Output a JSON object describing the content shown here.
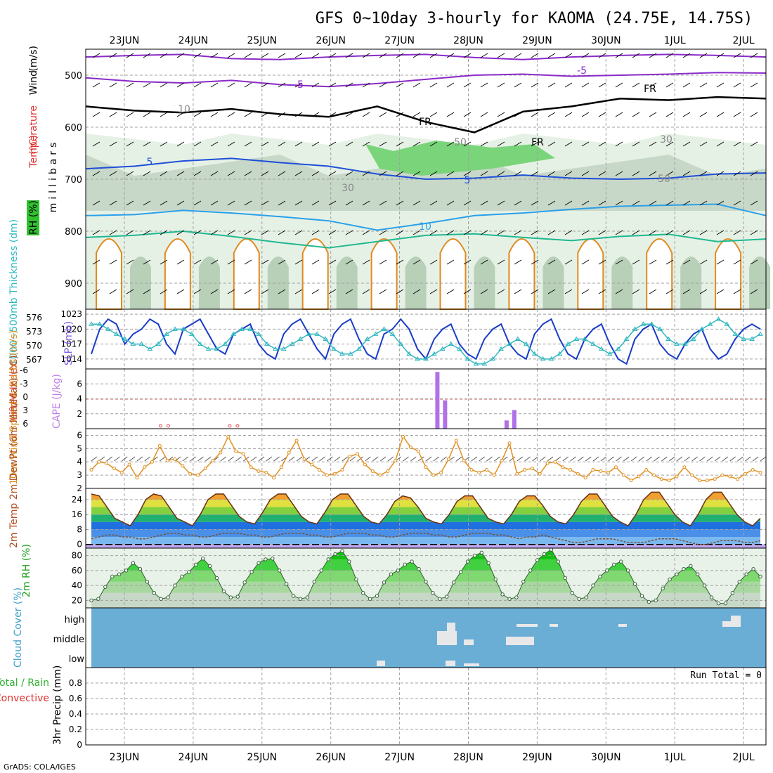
{
  "title": "GFS 0~10day 3-hourly for KAOMA (24.75E, 14.75S)",
  "footer": "GrADS: COLA/IGES",
  "dates": [
    "23JUN",
    "24JUN",
    "25JUN",
    "26JUN",
    "27JUN",
    "28JUN",
    "29JUN",
    "30JUN",
    "1JUL",
    "2JUL"
  ],
  "colors": {
    "frame": "#000000",
    "grid": "#a0a0a0",
    "slp": "#1a3cc8",
    "thickness": "#30b8c0",
    "cape": "#b070e8",
    "lifted": "#e05050",
    "wind10": "#e09020",
    "rh_green": "#20c020",
    "cloud_bg": "#6aaed6",
    "cloud_white": "#e8e8e8"
  },
  "chart_data": [
    {
      "type": "contour",
      "panel": "upper-air",
      "ylabels": [
        "(m/s)",
        "Wind",
        "Temperature",
        "(°C)",
        "RH (%)",
        "millibars"
      ],
      "yticks": [
        500,
        600,
        700,
        800,
        900
      ],
      "ylim": [
        950,
        450
      ],
      "contour_labels": [
        "-5",
        "-5",
        "FR",
        "FR",
        "FR",
        "10",
        "30",
        "30",
        "50",
        "50",
        "5",
        "5",
        "10"
      ],
      "temperature_isotherms": [
        {
          "label": "-5",
          "color": "#8a2bc8",
          "p": [
            505,
            512,
            515,
            510,
            518,
            522,
            516,
            508,
            500,
            498,
            502,
            500,
            498,
            495,
            496
          ]
        },
        {
          "label": "-5b",
          "color": "#8a2bc8",
          "p": [
            465,
            462,
            460,
            468,
            470,
            465,
            462,
            460,
            466,
            470,
            465,
            462,
            460,
            462,
            465
          ]
        },
        {
          "label": "FR",
          "color": "#000000",
          "p": [
            560,
            568,
            572,
            565,
            575,
            580,
            560,
            590,
            610,
            570,
            560,
            545,
            548,
            542,
            545
          ]
        },
        {
          "label": "5",
          "color": "#1e4fd8",
          "p": [
            680,
            675,
            665,
            660,
            668,
            675,
            690,
            700,
            698,
            692,
            698,
            700,
            698,
            690,
            688
          ]
        },
        {
          "label": "10",
          "color": "#2aa0e8",
          "p": [
            770,
            768,
            760,
            765,
            772,
            780,
            798,
            785,
            770,
            765,
            758,
            752,
            750,
            748,
            770
          ]
        },
        {
          "label": "15",
          "color": "#20b890",
          "p": [
            812,
            808,
            800,
            810,
            822,
            832,
            820,
            808,
            805,
            812,
            818,
            810,
            806,
            820,
            815
          ]
        }
      ]
    },
    {
      "type": "line",
      "panel": "slp-thickness",
      "ylabel_left": "1000~500mb Thickness (dm)",
      "ylabel_right": "SLP (mb)",
      "yticks_left": [
        576,
        573,
        570,
        567
      ],
      "yticks_right": [
        1023,
        1020,
        1017,
        1014
      ],
      "series": [
        {
          "name": "SLP (mb)",
          "axis": "right",
          "values": [
            1015,
            1020,
            1022,
            1021,
            1017,
            1019,
            1020,
            1022,
            1021,
            1017,
            1015,
            1020,
            1021,
            1022,
            1019,
            1016,
            1015,
            1019,
            1020,
            1021,
            1017,
            1015,
            1014,
            1019,
            1021,
            1022,
            1019,
            1016,
            1014,
            1019,
            1021,
            1022,
            1018,
            1015,
            1014,
            1019,
            1020,
            1022,
            1020,
            1016,
            1014,
            1018,
            1020,
            1021,
            1017,
            1015,
            1014,
            1018,
            1020,
            1021,
            1017,
            1015,
            1014,
            1019,
            1021,
            1022,
            1018,
            1015,
            1014,
            1018,
            1020,
            1021,
            1017,
            1014,
            1013,
            1018,
            1020,
            1021,
            1017,
            1015,
            1014,
            1017,
            1019,
            1020,
            1016,
            1014,
            1015,
            1018,
            1020,
            1021,
            1020
          ]
        },
        {
          "name": "1000~500mb Thickness (dm)",
          "axis": "left",
          "values": [
            575,
            575,
            574,
            573,
            572,
            571,
            571,
            570,
            571,
            573,
            574,
            574,
            573,
            571,
            570,
            570,
            571,
            573,
            574,
            574,
            573,
            571,
            570,
            570,
            571,
            572,
            573,
            573,
            572,
            570,
            569,
            569,
            570,
            572,
            573,
            574,
            573,
            571,
            569,
            568,
            568,
            569,
            570,
            571,
            570,
            568,
            567,
            567,
            568,
            570,
            571,
            572,
            571,
            569,
            568,
            568,
            569,
            571,
            572,
            572,
            571,
            570,
            569,
            570,
            572,
            574,
            575,
            575,
            574,
            572,
            571,
            571,
            572,
            574,
            575,
            576,
            575,
            573,
            572,
            572,
            573
          ]
        }
      ]
    },
    {
      "type": "bar",
      "panel": "cape-li",
      "ylabel_left": "Lifted Index",
      "ylabel_right": "CAPE (J/kg)",
      "yticks_left": [
        "-6",
        "-3",
        "0",
        "3",
        "6"
      ],
      "yticks_right": [
        6,
        4,
        2
      ],
      "ylim_cape": [
        0,
        8
      ],
      "cape_bars": [
        {
          "index": 45,
          "value": 7.6
        },
        {
          "index": 46,
          "value": 3.8
        },
        {
          "index": 54,
          "value": 1.1
        },
        {
          "index": 55,
          "value": 2.5
        }
      ],
      "lifted_index_markers": [
        9,
        10,
        18,
        19
      ]
    },
    {
      "type": "line",
      "panel": "wind10",
      "ylabel": "10m Wind Speed & Barbs (m/s)",
      "yticks": [
        6,
        5,
        4,
        3,
        2
      ],
      "ylim": [
        2,
        6.5
      ],
      "series": [
        {
          "name": "10m Wind Speed",
          "values": [
            3.4,
            4.0,
            3.9,
            3.5,
            3.2,
            3.8,
            2.8,
            3.6,
            4.0,
            5.2,
            4.1,
            4.2,
            3.7,
            3.1,
            3.0,
            3.5,
            4.1,
            4.7,
            5.9,
            4.8,
            4.6,
            3.6,
            3.3,
            3.2,
            2.8,
            3.6,
            4.7,
            5.6,
            4.2,
            3.8,
            3.4,
            3.0,
            3.1,
            3.4,
            4.4,
            4.6,
            3.8,
            3.3,
            3.0,
            3.3,
            4.1,
            5.9,
            5.1,
            4.8,
            3.6,
            3.0,
            3.2,
            4.2,
            5.6,
            4.1,
            3.4,
            3.2,
            3.4,
            3.0,
            4.1,
            5.4,
            3.1,
            3.4,
            3.5,
            3.1,
            3.9,
            4.0,
            3.6,
            3.4,
            3.1,
            2.8,
            3.4,
            3.3,
            3.2,
            3.6,
            3.0,
            2.6,
            2.9,
            3.4,
            3.0,
            2.7,
            2.6,
            2.9,
            3.6,
            3.0,
            2.6,
            2.6,
            2.7,
            3.0,
            2.9,
            2.7,
            3.1,
            3.4,
            3.2
          ]
        }
      ]
    },
    {
      "type": "area",
      "panel": "temp",
      "ylabel": "2m Temp 2m DewPt (6hr Min/Max) (°C)",
      "yticks": [
        24,
        16,
        8,
        0
      ],
      "ylim": [
        -2,
        30
      ],
      "series": [
        {
          "name": "2m Temp",
          "values": [
            27,
            26,
            20,
            14,
            12,
            10,
            16,
            24,
            27,
            26,
            20,
            14,
            12,
            10,
            16,
            24,
            27,
            27,
            21,
            15,
            12,
            11,
            17,
            24,
            27,
            27,
            21,
            15,
            12,
            11,
            17,
            24,
            27,
            27,
            21,
            15,
            12,
            11,
            16,
            23,
            26,
            25,
            20,
            14,
            12,
            11,
            16,
            23,
            26,
            26,
            20,
            14,
            12,
            11,
            16,
            23,
            26,
            26,
            21,
            15,
            12,
            11,
            16,
            23,
            27,
            27,
            21,
            15,
            12,
            10,
            16,
            24,
            28,
            28,
            22,
            16,
            12,
            10,
            16,
            24,
            28,
            28,
            22,
            16,
            12,
            10,
            14
          ]
        },
        {
          "name": "2m DewPt",
          "values": [
            3,
            4,
            5,
            5,
            4,
            4,
            3,
            3,
            4,
            5,
            6,
            6,
            5,
            5,
            4,
            4,
            5,
            6,
            6,
            6,
            5,
            5,
            4,
            4,
            5,
            6,
            6,
            6,
            5,
            5,
            4,
            4,
            5,
            6,
            6,
            6,
            5,
            5,
            4,
            4,
            5,
            6,
            6,
            6,
            5,
            5,
            4,
            4,
            5,
            6,
            6,
            6,
            5,
            5,
            4,
            3,
            4,
            4,
            5,
            4,
            3,
            2,
            1,
            1,
            2,
            3,
            3,
            3,
            2,
            1,
            1,
            1,
            2,
            3,
            3,
            3,
            2,
            1,
            0,
            0,
            1,
            2,
            2,
            2,
            1,
            1,
            2
          ]
        }
      ]
    },
    {
      "type": "area",
      "panel": "rh2m",
      "ylabel": "2m RH (%)",
      "yticks": [
        80,
        60,
        40,
        20
      ],
      "ylim": [
        10,
        90
      ],
      "series": [
        {
          "name": "2m RH",
          "values": [
            20,
            22,
            38,
            52,
            55,
            60,
            70,
            62,
            45,
            30,
            22,
            24,
            40,
            52,
            58,
            68,
            76,
            66,
            50,
            32,
            24,
            25,
            44,
            58,
            70,
            75,
            76,
            60,
            42,
            26,
            22,
            24,
            45,
            60,
            75,
            82,
            86,
            72,
            48,
            30,
            22,
            26,
            44,
            55,
            60,
            68,
            72,
            62,
            45,
            30,
            22,
            25,
            44,
            58,
            72,
            80,
            84,
            70,
            48,
            28,
            22,
            24,
            45,
            60,
            74,
            82,
            88,
            72,
            50,
            30,
            22,
            24,
            40,
            52,
            60,
            68,
            72,
            60,
            42,
            26,
            18,
            20,
            36,
            48,
            55,
            62,
            66,
            55,
            40,
            24,
            16,
            16,
            30,
            45,
            55,
            62,
            52
          ]
        }
      ]
    },
    {
      "type": "heatmap",
      "panel": "cloud",
      "ylabel": "Cloud Cover (%)",
      "layers": [
        "high",
        "middle",
        "low"
      ]
    },
    {
      "type": "bar",
      "panel": "precip",
      "ylabel": "3hr Precip (mm)",
      "ylabel_left": "Total / Rain",
      "ylabel_left2": "Convective",
      "yticks": [
        "0.8",
        "0.6",
        "0.4",
        "0.2",
        "0"
      ],
      "ylim": [
        0,
        1.0
      ],
      "annotation": "Run Total = 0",
      "values": []
    }
  ]
}
